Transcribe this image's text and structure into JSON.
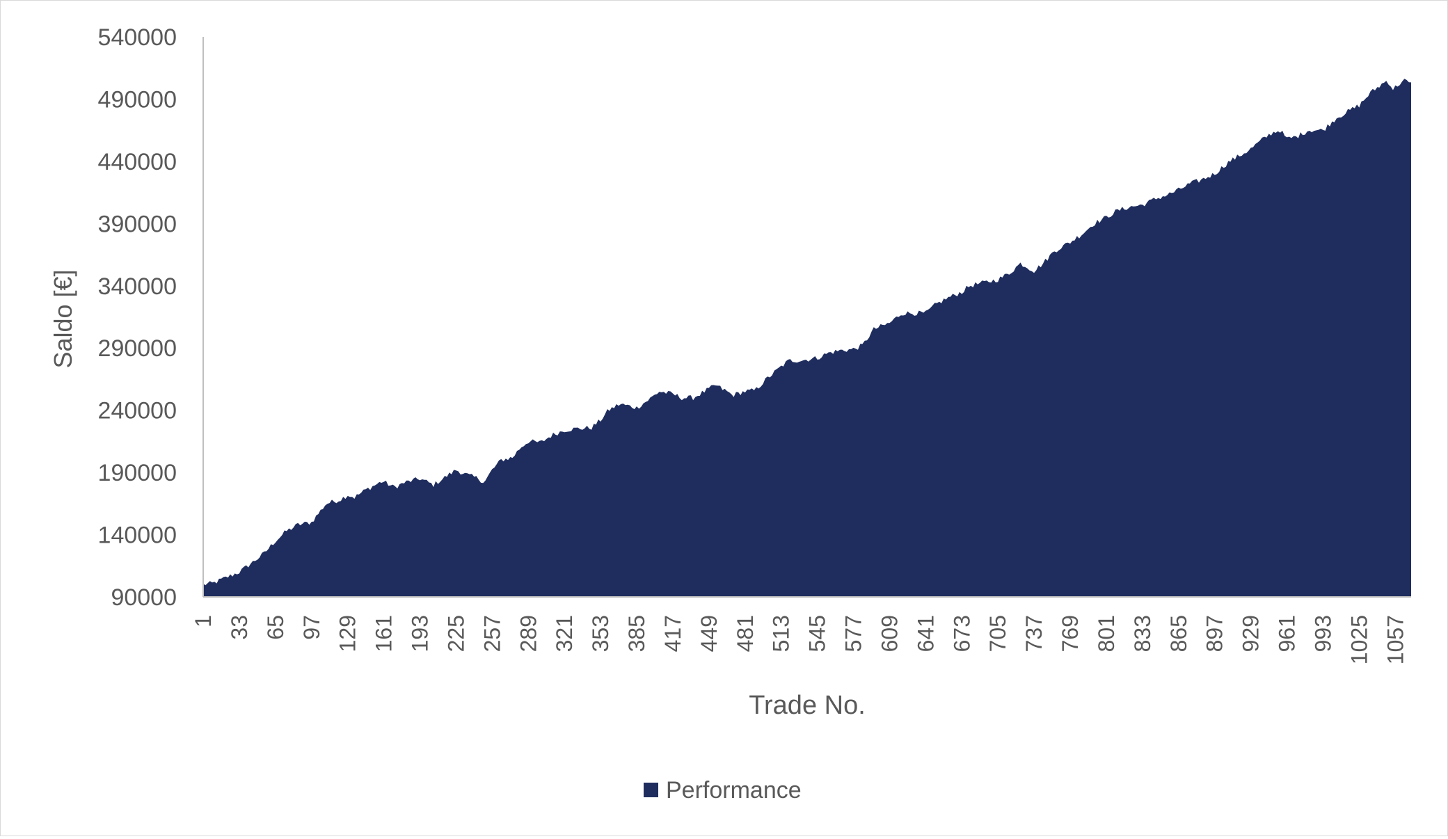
{
  "chart_data": {
    "type": "area",
    "title": "",
    "xlabel": "Trade No.",
    "ylabel": "Saldo [€]",
    "ylim": [
      90000,
      540000
    ],
    "yticks": [
      90000,
      140000,
      190000,
      240000,
      290000,
      340000,
      390000,
      440000,
      490000,
      540000
    ],
    "ytick_labels": [
      "90000",
      "140000",
      "190000",
      "240000",
      "290000",
      "340000",
      "390000",
      "440000",
      "490000",
      "540000"
    ],
    "xlim": [
      1,
      1071
    ],
    "xtick_labels": [
      "1",
      "33",
      "65",
      "97",
      "129",
      "161",
      "193",
      "225",
      "257",
      "289",
      "321",
      "353",
      "385",
      "417",
      "449",
      "481",
      "513",
      "545",
      "577",
      "609",
      "641",
      "673",
      "705",
      "737",
      "769",
      "801",
      "833",
      "865",
      "897",
      "929",
      "961",
      "993",
      "1025",
      "1057"
    ],
    "grid": false,
    "legend": "bottom",
    "series": [
      {
        "name": "Performance",
        "color": "#1f2d5e",
        "x": [
          1,
          10,
          20,
          33,
          45,
          55,
          65,
          75,
          85,
          97,
          110,
          122,
          129,
          135,
          145,
          160,
          170,
          180,
          193,
          205,
          215,
          225,
          235,
          245,
          250,
          257,
          265,
          275,
          282,
          289,
          300,
          310,
          321,
          330,
          345,
          353,
          360,
          370,
          380,
          385,
          395,
          405,
          417,
          425,
          435,
          445,
          455,
          465,
          470,
          480,
          490,
          500,
          513,
          520,
          530,
          545,
          555,
          565,
          577,
          585,
          595,
          609,
          620,
          630,
          641,
          650,
          660,
          673,
          680,
          690,
          705,
          715,
          725,
          737,
          745,
          755,
          769,
          780,
          790,
          801,
          810,
          820,
          833,
          845,
          855,
          865,
          875,
          885,
          897,
          910,
          920,
          929,
          940,
          948,
          955,
          961,
          970,
          980,
          993,
          1005,
          1015,
          1025,
          1035,
          1045,
          1050,
          1055,
          1060,
          1065,
          1071
        ],
        "values": [
          100000,
          101000,
          105000,
          110000,
          118000,
          125000,
          135000,
          143000,
          148000,
          150000,
          165000,
          168000,
          172000,
          170000,
          176000,
          183000,
          178000,
          182000,
          185000,
          180000,
          186000,
          192000,
          188000,
          185000,
          182000,
          192000,
          200000,
          202000,
          210000,
          215000,
          214000,
          220000,
          224000,
          225000,
          226000,
          232000,
          240000,
          245000,
          243000,
          242000,
          248000,
          255000,
          253000,
          250000,
          250000,
          255000,
          260000,
          255000,
          252000,
          255000,
          256000,
          265000,
          275000,
          280000,
          280000,
          282000,
          286000,
          288000,
          289000,
          292000,
          305000,
          310000,
          318000,
          318000,
          318000,
          325000,
          330000,
          335000,
          340000,
          342000,
          345000,
          350000,
          358000,
          352000,
          358000,
          368000,
          375000,
          382000,
          390000,
          395000,
          400000,
          403000,
          405000,
          410000,
          413000,
          417000,
          422000,
          425000,
          430000,
          440000,
          445000,
          450000,
          458000,
          463000,
          465000,
          458000,
          460000,
          465000,
          465000,
          475000,
          480000,
          485000,
          495000,
          502000,
          505000,
          498000,
          502000,
          505000,
          502000
        ]
      }
    ]
  }
}
